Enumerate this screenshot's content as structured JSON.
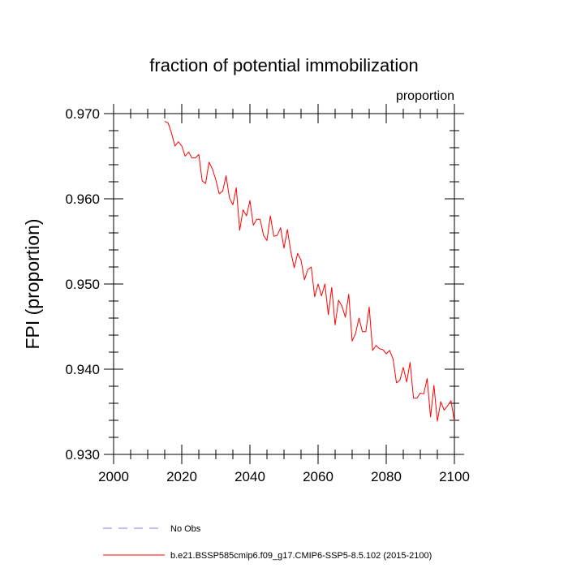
{
  "chart_data": {
    "type": "line",
    "title": "fraction of potential immobilization",
    "units": "proportion",
    "ylabel": "FPI  (proportion)",
    "xlabel": "",
    "xlim": [
      2000,
      2100
    ],
    "ylim": [
      0.93,
      0.97
    ],
    "x_ticks": [
      2000,
      2020,
      2040,
      2060,
      2080,
      2100
    ],
    "x_tick_labels": [
      "2000",
      "2020",
      "2040",
      "2060",
      "2080",
      "2100"
    ],
    "y_ticks": [
      0.93,
      0.94,
      0.95,
      0.96,
      0.97
    ],
    "y_tick_labels": [
      "0.930",
      "0.940",
      "0.950",
      "0.960",
      "0.970"
    ],
    "x_minor_step": 5,
    "y_minor_step": 0.002,
    "grid": false,
    "legend_position": "bottom",
    "series": [
      {
        "name": "No Obs",
        "color": "#8080f0",
        "dashed": true,
        "x": [],
        "y": []
      },
      {
        "name": "b.e21.BSSP585cmip6.f09_g17.CMIP6-SSP5-8.5.102 (2015-2100)",
        "color": "#ff0000",
        "dashed": false,
        "x": [
          2015,
          2016,
          2017,
          2018,
          2019,
          2020,
          2021,
          2022,
          2023,
          2024,
          2025,
          2026,
          2027,
          2028,
          2029,
          2030,
          2031,
          2032,
          2033,
          2034,
          2035,
          2036,
          2037,
          2038,
          2039,
          2040,
          2041,
          2042,
          2043,
          2044,
          2045,
          2046,
          2047,
          2048,
          2049,
          2050,
          2051,
          2052,
          2053,
          2054,
          2055,
          2056,
          2057,
          2058,
          2059,
          2060,
          2061,
          2062,
          2063,
          2064,
          2065,
          2066,
          2067,
          2068,
          2069,
          2070,
          2071,
          2072,
          2073,
          2074,
          2075,
          2076,
          2077,
          2078,
          2079,
          2080,
          2081,
          2082,
          2083,
          2084,
          2085,
          2086,
          2087,
          2088,
          2089,
          2090,
          2091,
          2092,
          2093,
          2094,
          2095,
          2096,
          2097,
          2098,
          2099,
          2100
        ],
        "y": [
          0.9691,
          0.9689,
          0.9677,
          0.9662,
          0.9667,
          0.9662,
          0.965,
          0.9655,
          0.9648,
          0.9648,
          0.9652,
          0.9621,
          0.9618,
          0.9643,
          0.9635,
          0.9622,
          0.9606,
          0.9609,
          0.9627,
          0.9601,
          0.9593,
          0.9613,
          0.9563,
          0.9587,
          0.958,
          0.9598,
          0.9569,
          0.9576,
          0.9576,
          0.9557,
          0.9551,
          0.958,
          0.9556,
          0.9557,
          0.9566,
          0.9542,
          0.9564,
          0.9538,
          0.9519,
          0.9536,
          0.9528,
          0.9505,
          0.9517,
          0.952,
          0.9485,
          0.95,
          0.9486,
          0.95,
          0.9464,
          0.9496,
          0.9452,
          0.9481,
          0.9474,
          0.9461,
          0.9488,
          0.9433,
          0.9442,
          0.946,
          0.9444,
          0.9444,
          0.9473,
          0.9422,
          0.9428,
          0.9424,
          0.9423,
          0.9418,
          0.9422,
          0.9412,
          0.9384,
          0.9387,
          0.9402,
          0.9385,
          0.9408,
          0.9366,
          0.9366,
          0.9372,
          0.9371,
          0.9389,
          0.9344,
          0.9381,
          0.9339,
          0.9362,
          0.9352,
          0.9357,
          0.9363,
          0.9339
        ]
      }
    ]
  }
}
